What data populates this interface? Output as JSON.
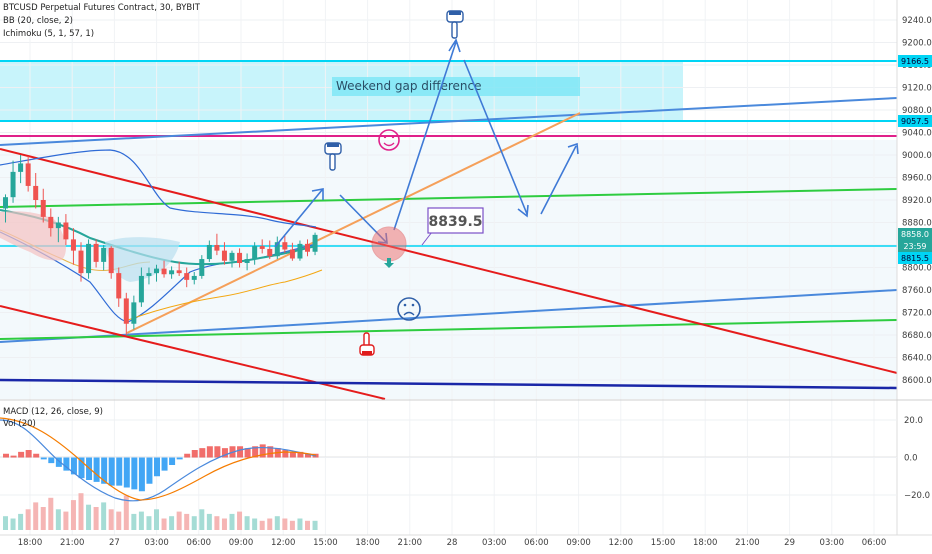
{
  "header": {
    "symbol_line": "BTCUSD Perpetual Futures Contract, 30, BYBIT",
    "indicator_bb": "BB (20, close, 2)",
    "indicator_ichimoku": "Ichimoku (5, 1, 57, 1)"
  },
  "annotations": {
    "gap_label": "Weekend gap difference",
    "price_callout": "8839.5"
  },
  "price_axis": {
    "ticks": [
      "9240.0",
      "9200.0",
      "9160.0",
      "9120.0",
      "9080.0",
      "9040.0",
      "9000.0",
      "8960.0",
      "8920.0",
      "8880.0",
      "8840.0",
      "8800.0",
      "8760.0",
      "8720.0",
      "8680.0",
      "8640.0",
      "8600.0"
    ],
    "badges": {
      "top_level": "9166.5",
      "mid_level": "9057.5",
      "last_price": "8858.0",
      "countdown": "23:59",
      "low_level": "8815.5"
    }
  },
  "macd_panel": {
    "legend_macd": "MACD (12, 26, close, 9)",
    "legend_vol": "Vol (20)",
    "ticks": [
      "20.0",
      "0.0",
      "−20.0"
    ]
  },
  "time_axis": {
    "ticks": [
      "18:00",
      "21:00",
      "27",
      "03:00",
      "06:00",
      "09:00",
      "12:00",
      "15:00",
      "18:00",
      "21:00",
      "28",
      "03:00",
      "06:00",
      "09:00",
      "12:00",
      "15:00",
      "18:00",
      "21:00",
      "29",
      "03:00",
      "06:00"
    ]
  },
  "colors": {
    "up": "#26a69a",
    "down": "#ef5350",
    "gap_band": "#00e5ff",
    "blue_line": "#4a89dc",
    "red_line": "#e51c1c",
    "green_line": "#2ecc40",
    "magenta_line": "#e0218a",
    "orange_line": "#f5a05a",
    "navy_line": "#1a27a8"
  },
  "chart_data": {
    "type": "candlestick",
    "symbol": "BTCUSD Perpetual Futures Contract",
    "interval": "30",
    "exchange": "BYBIT",
    "x_ticks": [
      "18:00",
      "21:00",
      "27",
      "03:00",
      "06:00",
      "09:00",
      "12:00",
      "15:00",
      "18:00",
      "21:00",
      "28",
      "03:00",
      "06:00",
      "09:00",
      "12:00",
      "15:00",
      "18:00",
      "21:00",
      "29",
      "03:00",
      "06:00"
    ],
    "y_ticks": [
      9240,
      9200,
      9160,
      9120,
      9080,
      9040,
      9000,
      8960,
      8920,
      8880,
      8840,
      8800,
      8760,
      8720,
      8680,
      8640,
      8600
    ],
    "ylim": [
      8588,
      9268
    ],
    "horizontal_levels": [
      9166.5,
      9057.5,
      8858.0,
      8815.5
    ],
    "ohlc": [
      {
        "o": 8905,
        "h": 8930,
        "l": 8880,
        "c": 8925
      },
      {
        "o": 8925,
        "h": 8990,
        "l": 8915,
        "c": 8970
      },
      {
        "o": 8970,
        "h": 9000,
        "l": 8950,
        "c": 8985
      },
      {
        "o": 8985,
        "h": 8998,
        "l": 8935,
        "c": 8945
      },
      {
        "o": 8945,
        "h": 8968,
        "l": 8905,
        "c": 8920
      },
      {
        "o": 8920,
        "h": 8940,
        "l": 8880,
        "c": 8890
      },
      {
        "o": 8890,
        "h": 8905,
        "l": 8855,
        "c": 8870
      },
      {
        "o": 8870,
        "h": 8890,
        "l": 8845,
        "c": 8880
      },
      {
        "o": 8880,
        "h": 8895,
        "l": 8840,
        "c": 8850
      },
      {
        "o": 8850,
        "h": 8870,
        "l": 8805,
        "c": 8830
      },
      {
        "o": 8830,
        "h": 8845,
        "l": 8775,
        "c": 8790
      },
      {
        "o": 8790,
        "h": 8850,
        "l": 8780,
        "c": 8842
      },
      {
        "o": 8842,
        "h": 8850,
        "l": 8800,
        "c": 8810
      },
      {
        "o": 8810,
        "h": 8840,
        "l": 8795,
        "c": 8835
      },
      {
        "o": 8835,
        "h": 8838,
        "l": 8780,
        "c": 8790
      },
      {
        "o": 8790,
        "h": 8800,
        "l": 8730,
        "c": 8745
      },
      {
        "o": 8745,
        "h": 8755,
        "l": 8680,
        "c": 8700
      },
      {
        "o": 8700,
        "h": 8750,
        "l": 8690,
        "c": 8738
      },
      {
        "o": 8738,
        "h": 8800,
        "l": 8730,
        "c": 8785
      },
      {
        "o": 8785,
        "h": 8800,
        "l": 8770,
        "c": 8790
      },
      {
        "o": 8790,
        "h": 8805,
        "l": 8775,
        "c": 8798
      },
      {
        "o": 8798,
        "h": 8812,
        "l": 8782,
        "c": 8788
      },
      {
        "o": 8788,
        "h": 8802,
        "l": 8780,
        "c": 8795
      },
      {
        "o": 8795,
        "h": 8810,
        "l": 8785,
        "c": 8790
      },
      {
        "o": 8790,
        "h": 8800,
        "l": 8765,
        "c": 8778
      },
      {
        "o": 8778,
        "h": 8792,
        "l": 8770,
        "c": 8785
      },
      {
        "o": 8785,
        "h": 8822,
        "l": 8780,
        "c": 8815
      },
      {
        "o": 8815,
        "h": 8848,
        "l": 8810,
        "c": 8840
      },
      {
        "o": 8840,
        "h": 8860,
        "l": 8822,
        "c": 8830
      },
      {
        "o": 8830,
        "h": 8845,
        "l": 8805,
        "c": 8812
      },
      {
        "o": 8812,
        "h": 8830,
        "l": 8800,
        "c": 8826
      },
      {
        "o": 8826,
        "h": 8834,
        "l": 8800,
        "c": 8808
      },
      {
        "o": 8808,
        "h": 8825,
        "l": 8795,
        "c": 8815
      },
      {
        "o": 8815,
        "h": 8845,
        "l": 8805,
        "c": 8838
      },
      {
        "o": 8838,
        "h": 8850,
        "l": 8825,
        "c": 8833
      },
      {
        "o": 8833,
        "h": 8848,
        "l": 8815,
        "c": 8820
      },
      {
        "o": 8820,
        "h": 8855,
        "l": 8815,
        "c": 8845
      },
      {
        "o": 8845,
        "h": 8856,
        "l": 8826,
        "c": 8832
      },
      {
        "o": 8832,
        "h": 8844,
        "l": 8812,
        "c": 8816
      },
      {
        "o": 8816,
        "h": 8848,
        "l": 8812,
        "c": 8842
      },
      {
        "o": 8842,
        "h": 8850,
        "l": 8820,
        "c": 8828
      },
      {
        "o": 8828,
        "h": 8862,
        "l": 8822,
        "c": 8858
      }
    ],
    "macd_histogram": [
      2,
      1,
      3,
      4,
      2,
      -1,
      -3,
      -5,
      -7,
      -9,
      -11,
      -12,
      -13,
      -14,
      -15,
      -15,
      -16,
      -17,
      -18,
      -14,
      -10,
      -7,
      -4,
      -1,
      2,
      4,
      5,
      6,
      6,
      5,
      6,
      6,
      5,
      6,
      7,
      6,
      5,
      4,
      3,
      3,
      2,
      2
    ],
    "volume": [
      6,
      5,
      7,
      9,
      12,
      10,
      14,
      9,
      8,
      13,
      16,
      11,
      10,
      12,
      9,
      8,
      15,
      7,
      8,
      6,
      9,
      5,
      6,
      8,
      7,
      6,
      9,
      7,
      6,
      5,
      7,
      8,
      6,
      5,
      4,
      5,
      6,
      5,
      4,
      5,
      4,
      4
    ]
  }
}
